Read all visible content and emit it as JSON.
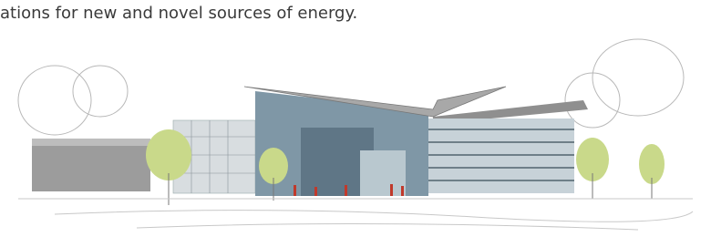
{
  "document": {
    "text": "ations for new and novel sources of energy."
  }
}
